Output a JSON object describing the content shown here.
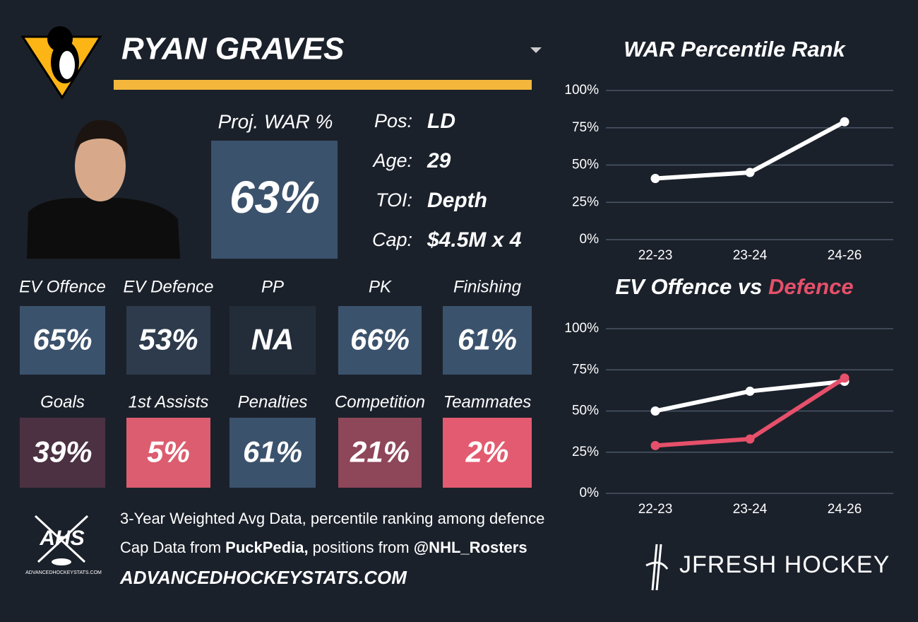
{
  "player": {
    "name": "RYAN GRAVES",
    "proj_label": "Proj. WAR %",
    "proj_value": "63%",
    "info": [
      {
        "label": "Pos:",
        "value": "LD"
      },
      {
        "label": "Age:",
        "value": "29"
      },
      {
        "label": "TOI:",
        "value": "Depth"
      },
      {
        "label": "Cap:",
        "value": "$4.5M x 4"
      }
    ]
  },
  "tiles": [
    {
      "label": "EV Offence",
      "value": "65%",
      "color": "#3b526c"
    },
    {
      "label": "EV Defence",
      "value": "53%",
      "color": "#2d3b4c"
    },
    {
      "label": "PP",
      "value": "NA",
      "color": "#232d39"
    },
    {
      "label": "PK",
      "value": "66%",
      "color": "#3b526c"
    },
    {
      "label": "Finishing",
      "value": "61%",
      "color": "#3b526c"
    },
    {
      "label": "Goals",
      "value": "39%",
      "color": "#4b3142"
    },
    {
      "label": "1st Assists",
      "value": "5%",
      "color": "#db5d6f"
    },
    {
      "label": "Penalties",
      "value": "61%",
      "color": "#3b526c"
    },
    {
      "label": "Competition",
      "value": "21%",
      "color": "#8e4659"
    },
    {
      "label": "Teammates",
      "value": "2%",
      "color": "#e35b70"
    }
  ],
  "footer": {
    "line1": "3-Year Weighted Avg Data, percentile ranking among defence",
    "line2": [
      "Cap Data from ",
      "PuckPedia,",
      " positions from ",
      "@NHL_Rosters"
    ],
    "site": "ADVANCEDHOCKEYSTATS.COM",
    "logo": "AHS",
    "logo_sub": "ADVANCEDHOCKEYSTATS.COM",
    "brand": "JFRESH HOCKEY"
  },
  "chart_data": [
    {
      "type": "line",
      "title": "WAR Percentile Rank",
      "categories": [
        "22-23",
        "23-24",
        "24-26"
      ],
      "series": [
        {
          "color": "#ffffff",
          "values": [
            41,
            45,
            79
          ]
        }
      ],
      "ylim": [
        0,
        100
      ],
      "yticks": [
        {
          "value": 0,
          "label": "0%"
        },
        {
          "value": 25,
          "label": "25%"
        },
        {
          "value": 50,
          "label": "50%"
        },
        {
          "value": 75,
          "label": "75%"
        },
        {
          "value": 100,
          "label": "100%"
        }
      ],
      "grid": true
    },
    {
      "type": "line",
      "title": "EV Offence vs",
      "title_highlight": "Defence",
      "highlight_color": "#e6506a",
      "categories": [
        "22-23",
        "23-24",
        "24-26"
      ],
      "series": [
        {
          "color": "#ffffff",
          "values": [
            50,
            62,
            68
          ]
        },
        {
          "color": "#e6506a",
          "values": [
            29,
            33,
            70
          ]
        }
      ],
      "ylim": [
        0,
        100
      ],
      "yticks": [
        {
          "value": 0,
          "label": "0%"
        },
        {
          "value": 25,
          "label": "25%"
        },
        {
          "value": 50,
          "label": "50%"
        },
        {
          "value": 75,
          "label": "75%"
        },
        {
          "value": 100,
          "label": "100%"
        }
      ],
      "grid": true
    }
  ]
}
